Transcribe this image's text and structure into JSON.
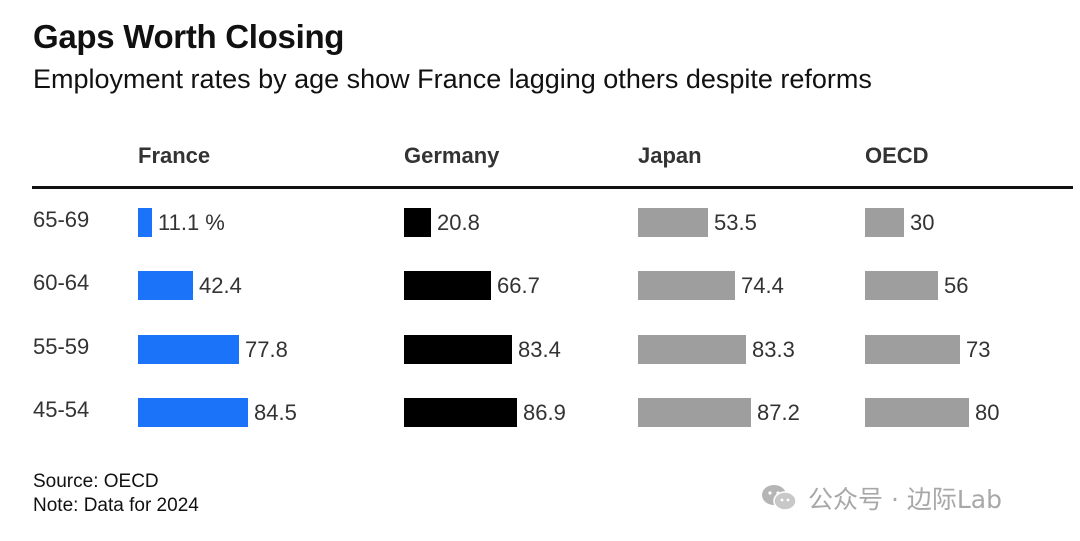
{
  "chart_data": {
    "type": "bar",
    "title": "Gaps Worth Closing",
    "subtitle": "Employment rates by age show France lagging others despite reforms",
    "categories": [
      "65-69",
      "60-64",
      "55-59",
      "45-54"
    ],
    "series": [
      {
        "name": "France",
        "values": [
          11.1,
          42.4,
          77.8,
          84.5
        ],
        "labels": [
          "11.1 %",
          "42.4",
          "77.8",
          "84.5"
        ],
        "color": "#1a73f8"
      },
      {
        "name": "Germany",
        "values": [
          20.8,
          66.7,
          83.4,
          86.9
        ],
        "labels": [
          "20.8",
          "66.7",
          "83.4",
          "86.9"
        ],
        "color": "#000000"
      },
      {
        "name": "Japan",
        "values": [
          53.5,
          74.4,
          83.3,
          87.2
        ],
        "labels": [
          "53.5",
          "74.4",
          "83.3",
          "87.2"
        ],
        "color": "#9e9e9e"
      },
      {
        "name": "OECD",
        "values": [
          30,
          56,
          73,
          80
        ],
        "labels": [
          "30",
          "56",
          "73",
          "80"
        ],
        "color": "#9e9e9e"
      }
    ],
    "orientation": "horizontal",
    "layout": "small-multiples",
    "grid": false
  },
  "footer": {
    "source": "Source: OECD",
    "note": "Note: Data for 2024"
  },
  "watermark": {
    "text": "公众号 · 边际Lab",
    "icon": "wechat-icon"
  }
}
